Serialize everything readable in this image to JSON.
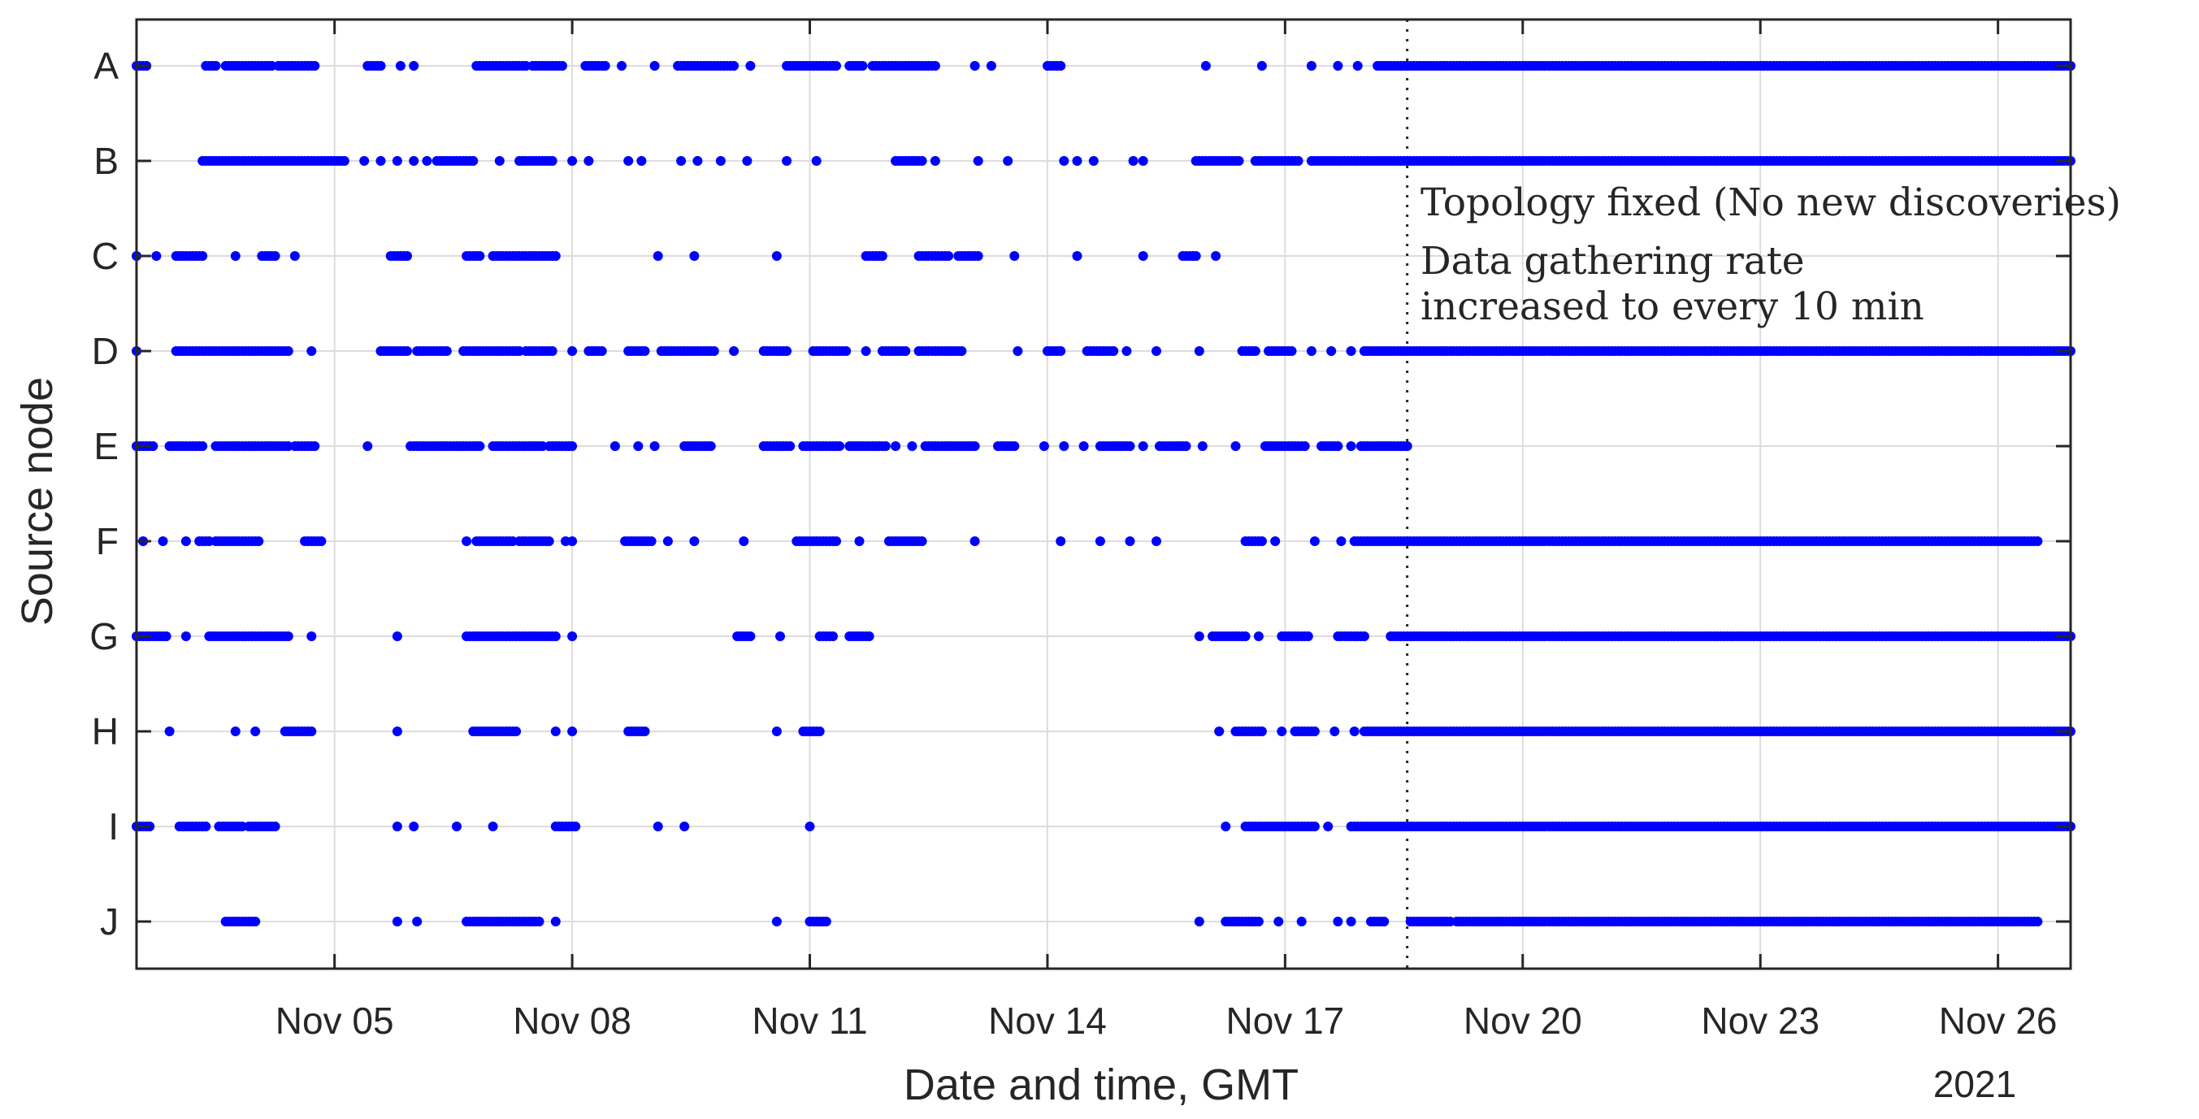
{
  "chart_data": {
    "type": "scatter",
    "xlabel": "Date and time, GMT",
    "ylabel": "Source node",
    "year_label": "2021",
    "xlim": [
      "2021-11-02T12:00",
      "2021-11-26T22:00"
    ],
    "x_ticks": [
      {
        "date": "2021-11-05",
        "label": "Nov 05"
      },
      {
        "date": "2021-11-08",
        "label": "Nov 08"
      },
      {
        "date": "2021-11-11",
        "label": "Nov 11"
      },
      {
        "date": "2021-11-14",
        "label": "Nov 14"
      },
      {
        "date": "2021-11-17",
        "label": "Nov 17"
      },
      {
        "date": "2021-11-20",
        "label": "Nov 20"
      },
      {
        "date": "2021-11-23",
        "label": "Nov 23"
      },
      {
        "date": "2021-11-26",
        "label": "Nov 26"
      }
    ],
    "categories": [
      "A",
      "B",
      "C",
      "D",
      "E",
      "F",
      "G",
      "H",
      "I",
      "J"
    ],
    "grid": true,
    "marker_color": "#0000ff",
    "event_line": {
      "date": "2021-11-18T13:00",
      "style": "dotted"
    },
    "annotations": [
      "Topology fixed (No new discoveries)",
      "Data gathering rate",
      "increased to every 10 min"
    ],
    "series": [
      {
        "node": "A",
        "segments": [
          [
            "2021-11-02T12:00",
            "2021-11-02T15:00"
          ],
          [
            "2021-11-03T09:00",
            "2021-11-03T12:00"
          ],
          [
            "2021-11-03T15:00",
            "2021-11-04T05:00"
          ],
          [
            "2021-11-04T07:00",
            "2021-11-04T18:00"
          ],
          [
            "2021-11-05T10:00",
            "2021-11-05T14:00"
          ],
          [
            "2021-11-06T19:00",
            "2021-11-07T10:00"
          ],
          [
            "2021-11-07T12:00",
            "2021-11-07T21:00"
          ],
          [
            "2021-11-08T04:00",
            "2021-11-08T10:00"
          ],
          [
            "2021-11-09T08:00",
            "2021-11-09T17:00"
          ],
          [
            "2021-11-09T18:00",
            "2021-11-10T01:00"
          ],
          [
            "2021-11-10T17:00",
            "2021-11-11T08:00"
          ],
          [
            "2021-11-11T12:00",
            "2021-11-11T16:00"
          ],
          [
            "2021-11-11T19:00",
            "2021-11-12T14:00"
          ],
          [
            "2021-11-14T00:00",
            "2021-11-14T04:00"
          ],
          [
            "2021-11-18T04:00",
            "2021-11-26T22:00"
          ]
        ],
        "points": [
          "2021-11-05T20:00",
          "2021-11-06T00:00",
          "2021-11-08T15:00",
          "2021-11-09T01:00",
          "2021-11-10T06:00",
          "2021-11-13T02:00",
          "2021-11-13T07:00",
          "2021-11-16T00:00",
          "2021-11-16T17:00",
          "2021-11-17T08:00",
          "2021-11-17T16:00",
          "2021-11-17T22:00"
        ]
      },
      {
        "node": "B",
        "segments": [
          [
            "2021-11-03T08:00",
            "2021-11-05T03:00"
          ],
          [
            "2021-11-06T07:00",
            "2021-11-06T18:00"
          ],
          [
            "2021-11-07T08:00",
            "2021-11-07T18:00"
          ],
          [
            "2021-11-12T02:00",
            "2021-11-12T10:00"
          ],
          [
            "2021-11-15T21:00",
            "2021-11-16T10:00"
          ],
          [
            "2021-11-16T15:00",
            "2021-11-17T04:00"
          ],
          [
            "2021-11-17T08:00",
            "2021-11-26T22:00"
          ]
        ],
        "points": [
          "2021-11-05T09:00",
          "2021-11-05T14:00",
          "2021-11-05T19:00",
          "2021-11-06T00:00",
          "2021-11-06T04:00",
          "2021-11-07T02:00",
          "2021-11-08T00:00",
          "2021-11-08T05:00",
          "2021-11-08T17:00",
          "2021-11-08T21:00",
          "2021-11-09T09:00",
          "2021-11-09T14:00",
          "2021-11-09T21:00",
          "2021-11-10T05:00",
          "2021-11-10T17:00",
          "2021-11-11T02:00",
          "2021-11-12T14:00",
          "2021-11-13T03:00",
          "2021-11-13T12:00",
          "2021-11-14T05:00",
          "2021-11-14T09:00",
          "2021-11-14T14:00",
          "2021-11-15T02:00",
          "2021-11-15T05:00"
        ]
      },
      {
        "node": "C",
        "segments": [
          [
            "2021-11-03T00:00",
            "2021-11-03T08:00"
          ],
          [
            "2021-11-04T02:00",
            "2021-11-04T06:00"
          ],
          [
            "2021-11-05T17:00",
            "2021-11-05T22:00"
          ],
          [
            "2021-11-06T16:00",
            "2021-11-06T20:00"
          ],
          [
            "2021-11-07T00:00",
            "2021-11-07T10:00"
          ],
          [
            "2021-11-07T11:00",
            "2021-11-07T19:00"
          ],
          [
            "2021-11-11T17:00",
            "2021-11-11T22:00"
          ],
          [
            "2021-11-12T09:00",
            "2021-11-12T18:00"
          ],
          [
            "2021-11-12T21:00",
            "2021-11-13T03:00"
          ],
          [
            "2021-11-15T17:00",
            "2021-11-15T21:00"
          ]
        ],
        "points": [
          "2021-11-02T12:00",
          "2021-11-02T18:00",
          "2021-11-03T18:00",
          "2021-11-04T12:00",
          "2021-11-09T02:00",
          "2021-11-09T13:00",
          "2021-11-10T14:00",
          "2021-11-13T14:00",
          "2021-11-14T09:00",
          "2021-11-15T05:00",
          "2021-11-16T03:00"
        ]
      },
      {
        "node": "D",
        "segments": [
          [
            "2021-11-03T00:00",
            "2021-11-04T10:00"
          ],
          [
            "2021-11-05T14:00",
            "2021-11-05T22:00"
          ],
          [
            "2021-11-06T01:00",
            "2021-11-06T10:00"
          ],
          [
            "2021-11-06T15:00",
            "2021-11-07T08:00"
          ],
          [
            "2021-11-07T10:00",
            "2021-11-07T18:00"
          ],
          [
            "2021-11-08T05:00",
            "2021-11-08T09:00"
          ],
          [
            "2021-11-08T17:00",
            "2021-11-08T22:00"
          ],
          [
            "2021-11-09T03:00",
            "2021-11-09T19:00"
          ],
          [
            "2021-11-10T10:00",
            "2021-11-10T17:00"
          ],
          [
            "2021-11-11T01:00",
            "2021-11-11T11:00"
          ],
          [
            "2021-11-11T22:00",
            "2021-11-12T05:00"
          ],
          [
            "2021-11-12T09:00",
            "2021-11-12T22:00"
          ],
          [
            "2021-11-14T00:00",
            "2021-11-14T04:00"
          ],
          [
            "2021-11-14T12:00",
            "2021-11-14T20:00"
          ],
          [
            "2021-11-16T11:00",
            "2021-11-16T15:00"
          ],
          [
            "2021-11-16T19:00",
            "2021-11-17T02:00"
          ],
          [
            "2021-11-18T00:00",
            "2021-11-26T22:00"
          ]
        ],
        "points": [
          "2021-11-02T12:00",
          "2021-11-04T17:00",
          "2021-11-08T00:00",
          "2021-11-10T01:00",
          "2021-11-11T17:00",
          "2021-11-13T15:00",
          "2021-11-15T00:00",
          "2021-11-15T09:00",
          "2021-11-15T22:00",
          "2021-11-17T08:00",
          "2021-11-17T14:00",
          "2021-11-17T20:00"
        ]
      },
      {
        "node": "E",
        "segments": [
          [
            "2021-11-02T12:00",
            "2021-11-02T17:00"
          ],
          [
            "2021-11-02T22:00",
            "2021-11-03T08:00"
          ],
          [
            "2021-11-03T12:00",
            "2021-11-04T10:00"
          ],
          [
            "2021-11-04T12:00",
            "2021-11-04T18:00"
          ],
          [
            "2021-11-05T23:00",
            "2021-11-06T20:00"
          ],
          [
            "2021-11-07T00:00",
            "2021-11-07T15:00"
          ],
          [
            "2021-11-07T17:00",
            "2021-11-08T00:00"
          ],
          [
            "2021-11-09T10:00",
            "2021-11-09T18:00"
          ],
          [
            "2021-11-10T10:00",
            "2021-11-10T18:00"
          ],
          [
            "2021-11-10T22:00",
            "2021-11-11T09:00"
          ],
          [
            "2021-11-11T12:00",
            "2021-11-11T23:00"
          ],
          [
            "2021-11-12T11:00",
            "2021-11-13T02:00"
          ],
          [
            "2021-11-13T09:00",
            "2021-11-13T14:00"
          ],
          [
            "2021-11-14T16:00",
            "2021-11-15T01:00"
          ],
          [
            "2021-11-15T10:00",
            "2021-11-15T18:00"
          ],
          [
            "2021-11-16T18:00",
            "2021-11-17T06:00"
          ],
          [
            "2021-11-17T11:00",
            "2021-11-17T16:00"
          ],
          [
            "2021-11-17T23:00",
            "2021-11-18T13:00"
          ]
        ],
        "points": [
          "2021-11-05T10:00",
          "2021-11-08T13:00",
          "2021-11-08T20:00",
          "2021-11-09T01:00",
          "2021-11-12T02:00",
          "2021-11-12T07:00",
          "2021-11-13T23:00",
          "2021-11-14T05:00",
          "2021-11-14T11:00",
          "2021-11-15T05:00",
          "2021-11-15T23:00",
          "2021-11-16T09:00",
          "2021-11-17T20:00"
        ]
      },
      {
        "node": "F",
        "segments": [
          [
            "2021-11-03T07:00",
            "2021-11-03T10:00"
          ],
          [
            "2021-11-03T12:00",
            "2021-11-04T01:00"
          ],
          [
            "2021-11-04T15:00",
            "2021-11-04T20:00"
          ],
          [
            "2021-11-06T19:00",
            "2021-11-07T06:00"
          ],
          [
            "2021-11-07T08:00",
            "2021-11-07T17:00"
          ],
          [
            "2021-11-08T16:00",
            "2021-11-09T00:00"
          ],
          [
            "2021-11-10T20:00",
            "2021-11-11T08:00"
          ],
          [
            "2021-11-12T00:00",
            "2021-11-12T10:00"
          ],
          [
            "2021-11-16T12:00",
            "2021-11-16T17:00"
          ],
          [
            "2021-11-17T21:00",
            "2021-11-18T03:00"
          ],
          [
            "2021-11-18T04:00",
            "2021-11-26T12:00"
          ]
        ],
        "points": [
          "2021-11-02T14:00",
          "2021-11-02T20:00",
          "2021-11-03T03:00",
          "2021-11-06T16:00",
          "2021-11-07T22:00",
          "2021-11-08T00:00",
          "2021-11-09T05:00",
          "2021-11-09T13:00",
          "2021-11-10T04:00",
          "2021-11-11T15:00",
          "2021-11-13T02:00",
          "2021-11-14T04:00",
          "2021-11-14T16:00",
          "2021-11-15T01:00",
          "2021-11-15T09:00",
          "2021-11-16T21:00",
          "2021-11-17T09:00",
          "2021-11-17T17:00"
        ]
      },
      {
        "node": "G",
        "segments": [
          [
            "2021-11-02T12:00",
            "2021-11-02T21:00"
          ],
          [
            "2021-11-03T10:00",
            "2021-11-04T10:00"
          ],
          [
            "2021-11-06T16:00",
            "2021-11-07T19:00"
          ],
          [
            "2021-11-10T02:00",
            "2021-11-10T06:00"
          ],
          [
            "2021-11-11T03:00",
            "2021-11-11T07:00"
          ],
          [
            "2021-11-11T12:00",
            "2021-11-11T17:00"
          ],
          [
            "2021-11-16T02:00",
            "2021-11-16T12:00"
          ],
          [
            "2021-11-17T00:00",
            "2021-11-17T07:00"
          ],
          [
            "2021-11-17T16:00",
            "2021-11-18T00:00"
          ],
          [
            "2021-11-18T08:00",
            "2021-11-26T22:00"
          ]
        ],
        "points": [
          "2021-11-03T03:00",
          "2021-11-04T17:00",
          "2021-11-05T19:00",
          "2021-11-08T00:00",
          "2021-11-10T15:00",
          "2021-11-11T18:00",
          "2021-11-15T22:00",
          "2021-11-16T16:00",
          "2021-11-16T23:00"
        ]
      },
      {
        "node": "H",
        "segments": [
          [
            "2021-11-04T09:00",
            "2021-11-04T17:00"
          ],
          [
            "2021-11-06T18:00",
            "2021-11-07T07:00"
          ],
          [
            "2021-11-08T17:00",
            "2021-11-08T22:00"
          ],
          [
            "2021-11-10T22:00",
            "2021-11-11T03:00"
          ],
          [
            "2021-11-16T09:00",
            "2021-11-16T17:00"
          ],
          [
            "2021-11-17T03:00",
            "2021-11-17T09:00"
          ],
          [
            "2021-11-18T00:00",
            "2021-11-26T22:00"
          ]
        ],
        "points": [
          "2021-11-02T22:00",
          "2021-11-03T18:00",
          "2021-11-04T00:00",
          "2021-11-05T19:00",
          "2021-11-07T19:00",
          "2021-11-08T00:00",
          "2021-11-10T14:00",
          "2021-11-16T04:00",
          "2021-11-16T23:00",
          "2021-11-17T15:00",
          "2021-11-17T21:00"
        ]
      },
      {
        "node": "I",
        "segments": [
          [
            "2021-11-02T12:00",
            "2021-11-02T16:00"
          ],
          [
            "2021-11-03T01:00",
            "2021-11-03T09:00"
          ],
          [
            "2021-11-03T13:00",
            "2021-11-03T20:00"
          ],
          [
            "2021-11-03T22:00",
            "2021-11-04T06:00"
          ],
          [
            "2021-11-07T19:00",
            "2021-11-08T01:00"
          ],
          [
            "2021-11-16T12:00",
            "2021-11-17T09:00"
          ],
          [
            "2021-11-17T20:00",
            "2021-11-26T22:00"
          ]
        ],
        "points": [
          "2021-11-05T19:00",
          "2021-11-06T00:00",
          "2021-11-06T13:00",
          "2021-11-07T00:00",
          "2021-11-09T02:00",
          "2021-11-09T10:00",
          "2021-11-11T00:00",
          "2021-11-16T06:00",
          "2021-11-17T13:00"
        ]
      },
      {
        "node": "J",
        "segments": [
          [
            "2021-11-03T15:00",
            "2021-11-04T00:00"
          ],
          [
            "2021-11-06T16:00",
            "2021-11-07T14:00"
          ],
          [
            "2021-11-11T00:00",
            "2021-11-11T05:00"
          ],
          [
            "2021-11-16T06:00",
            "2021-11-16T16:00"
          ],
          [
            "2021-11-18T02:00",
            "2021-11-18T06:00"
          ],
          [
            "2021-11-18T14:00",
            "2021-11-19T02:00"
          ],
          [
            "2021-11-19T04:00",
            "2021-11-26T12:00"
          ]
        ],
        "points": [
          "2021-11-05T19:00",
          "2021-11-06T01:00",
          "2021-11-07T19:00",
          "2021-11-10T14:00",
          "2021-11-15T22:00",
          "2021-11-16T22:00",
          "2021-11-17T05:00",
          "2021-11-17T16:00",
          "2021-11-17T20:00"
        ]
      }
    ]
  }
}
